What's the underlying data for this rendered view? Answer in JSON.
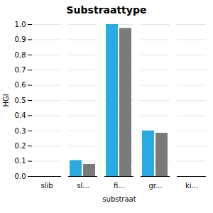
{
  "chart_data": {
    "type": "bar",
    "title": "Substraattype",
    "xlabel": "substraat",
    "ylabel": "HGI",
    "categories": [
      "slib",
      "sl...",
      "fi...",
      "gr...",
      "ki..."
    ],
    "series": [
      {
        "color": "#29aae2",
        "values": [
          0.0,
          0.105,
          1.0,
          0.3,
          0.0
        ]
      },
      {
        "color": "#7a7a7a",
        "values": [
          0.0,
          0.08,
          0.975,
          0.285,
          0.0
        ]
      }
    ],
    "ylim": [
      0.0,
      1.0
    ],
    "yticks": [
      {
        "value": 0.0,
        "label": "0.0"
      },
      0.1,
      0.2,
      0.3,
      0.4,
      0.5,
      0.6,
      0.7,
      0.8,
      0.9,
      {
        "value": 1.0,
        "label": "1.0"
      }
    ],
    "grid": true
  }
}
